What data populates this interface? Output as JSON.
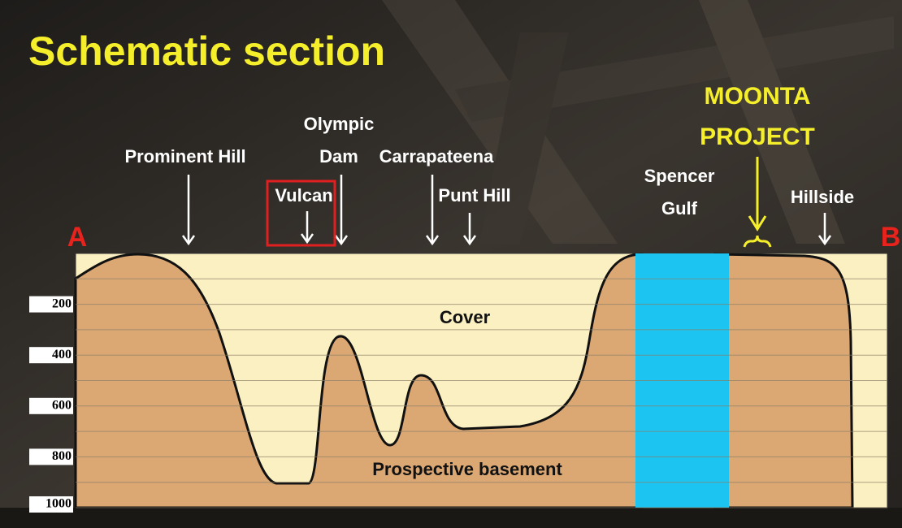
{
  "title": "Schematic section",
  "section_ends": [
    "A",
    "B"
  ],
  "locations": [
    {
      "lines": [
        "Prominent Hill"
      ]
    },
    {
      "lines": [
        "Olympic",
        "Dam"
      ]
    },
    {
      "lines": [
        "Vulcan"
      ]
    },
    {
      "lines": [
        "Carrapateena"
      ]
    },
    {
      "lines": [
        "Punt Hill"
      ]
    },
    {
      "lines": [
        "Spencer",
        "Gulf"
      ]
    },
    {
      "lines": [
        "MOONTA",
        "PROJECT"
      ]
    },
    {
      "lines": [
        "Hillside"
      ]
    }
  ],
  "zones": {
    "cover": "Cover",
    "basement": "Prospective basement"
  },
  "depth_labels": [
    200,
    400,
    600,
    800,
    1000
  ]
}
